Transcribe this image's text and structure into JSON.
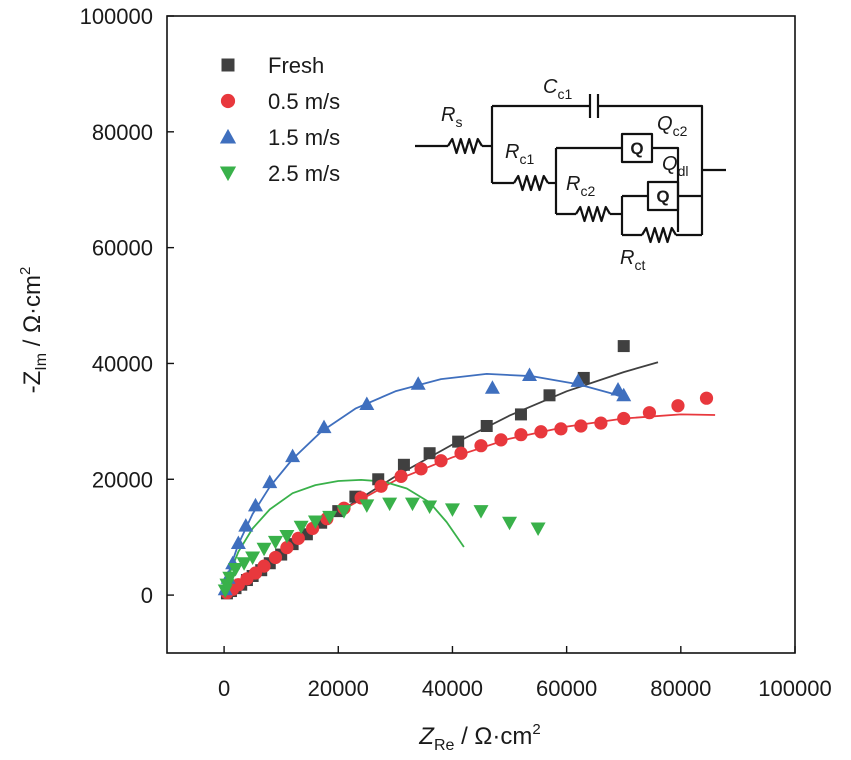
{
  "chart_data": {
    "type": "scatter",
    "xlabel": {
      "main": "Z",
      "sub": "Re",
      "unit": " / Ω·cm",
      "sup": "2"
    },
    "ylabel": {
      "main": "-Z",
      "sub": "Im",
      "unit": " / Ω·cm",
      "sup": "2"
    },
    "xlim": [
      -10000,
      100000
    ],
    "ylim": [
      -10000,
      100000
    ],
    "x_ticks": [
      0,
      20000,
      40000,
      60000,
      80000,
      100000
    ],
    "y_ticks": [
      0,
      20000,
      40000,
      60000,
      80000,
      100000
    ],
    "x_tick_labels": [
      "0",
      "20000",
      "40000",
      "60000",
      "80000",
      "100000"
    ],
    "y_tick_labels": [
      "0",
      "20000",
      "40000",
      "60000",
      "80000",
      "100000"
    ],
    "legend_position": "top-left",
    "grid": false,
    "series": [
      {
        "name": "Fresh",
        "marker": "square",
        "color": "#404040",
        "points": [
          [
            500,
            300
          ],
          [
            1200,
            700
          ],
          [
            2000,
            1200
          ],
          [
            3000,
            1800
          ],
          [
            4000,
            2600
          ],
          [
            5000,
            3300
          ],
          [
            6500,
            4300
          ],
          [
            8000,
            5500
          ],
          [
            10000,
            7000
          ],
          [
            12000,
            8800
          ],
          [
            14500,
            10500
          ],
          [
            17000,
            12500
          ],
          [
            20000,
            14500
          ],
          [
            23000,
            17000
          ],
          [
            27000,
            20000
          ],
          [
            31500,
            22500
          ],
          [
            36000,
            24500
          ],
          [
            41000,
            26500
          ],
          [
            46000,
            29200
          ],
          [
            52000,
            31200
          ],
          [
            57000,
            34500
          ],
          [
            63000,
            37500
          ],
          [
            70000,
            43000
          ]
        ],
        "fit": [
          [
            0,
            0
          ],
          [
            5000,
            3700
          ],
          [
            10000,
            7400
          ],
          [
            20000,
            14300
          ],
          [
            30000,
            20500
          ],
          [
            40000,
            26000
          ],
          [
            50000,
            31000
          ],
          [
            60000,
            35200
          ],
          [
            70000,
            38500
          ],
          [
            76000,
            40200
          ]
        ]
      },
      {
        "name": "0.5 m/s",
        "marker": "circle",
        "color": "#e8383d",
        "points": [
          [
            500,
            400
          ],
          [
            1500,
            1000
          ],
          [
            2500,
            1800
          ],
          [
            4000,
            2800
          ],
          [
            5500,
            3800
          ],
          [
            7000,
            5000
          ],
          [
            9000,
            6500
          ],
          [
            11000,
            8200
          ],
          [
            13000,
            9800
          ],
          [
            15500,
            11500
          ],
          [
            18000,
            13200
          ],
          [
            21000,
            15000
          ],
          [
            24000,
            16800
          ],
          [
            27500,
            18800
          ],
          [
            31000,
            20500
          ],
          [
            34500,
            21800
          ],
          [
            38000,
            23200
          ],
          [
            41500,
            24500
          ],
          [
            45000,
            25800
          ],
          [
            48500,
            26800
          ],
          [
            52000,
            27700
          ],
          [
            55500,
            28200
          ],
          [
            59000,
            28700
          ],
          [
            62500,
            29200
          ],
          [
            66000,
            29700
          ],
          [
            70000,
            30500
          ],
          [
            74500,
            31500
          ],
          [
            79500,
            32700
          ],
          [
            84500,
            34000
          ]
        ],
        "fit": [
          [
            0,
            0
          ],
          [
            5000,
            3800
          ],
          [
            10000,
            7600
          ],
          [
            20000,
            14300
          ],
          [
            30000,
            19800
          ],
          [
            40000,
            23800
          ],
          [
            50000,
            27000
          ],
          [
            60000,
            29100
          ],
          [
            70000,
            30500
          ],
          [
            80000,
            31200
          ],
          [
            86000,
            31100
          ]
        ]
      },
      {
        "name": "1.5 m/s",
        "marker": "triangle-up",
        "color": "#3f6fbe",
        "points": [
          [
            200,
            1000
          ],
          [
            700,
            3000
          ],
          [
            1500,
            5500
          ],
          [
            2500,
            9000
          ],
          [
            3800,
            12000
          ],
          [
            5500,
            15500
          ],
          [
            8000,
            19500
          ],
          [
            12000,
            24000
          ],
          [
            17500,
            29000
          ],
          [
            25000,
            33000
          ],
          [
            34000,
            36500
          ],
          [
            47000,
            35800
          ],
          [
            53500,
            38000
          ],
          [
            62000,
            37000
          ],
          [
            69000,
            35500
          ],
          [
            70000,
            34500
          ]
        ],
        "fit": [
          [
            0,
            0
          ],
          [
            1000,
            4500
          ],
          [
            2500,
            8800
          ],
          [
            5000,
            14000
          ],
          [
            8000,
            18700
          ],
          [
            12000,
            23500
          ],
          [
            17000,
            28200
          ],
          [
            23000,
            32200
          ],
          [
            30000,
            35200
          ],
          [
            38000,
            37300
          ],
          [
            46000,
            38200
          ],
          [
            54000,
            37800
          ],
          [
            62000,
            36400
          ],
          [
            68000,
            34800
          ],
          [
            71000,
            33800
          ]
        ]
      },
      {
        "name": "2.5 m/s",
        "marker": "triangle-down",
        "color": "#39b14a",
        "points": [
          [
            200,
            800
          ],
          [
            500,
            1800
          ],
          [
            1000,
            3000
          ],
          [
            2000,
            4500
          ],
          [
            3500,
            5500
          ],
          [
            5000,
            6500
          ],
          [
            7000,
            8000
          ],
          [
            9000,
            9200
          ],
          [
            11000,
            10200
          ],
          [
            13500,
            11800
          ],
          [
            16000,
            12700
          ],
          [
            18500,
            13500
          ],
          [
            21000,
            14500
          ],
          [
            25000,
            15500
          ],
          [
            29000,
            15800
          ],
          [
            33000,
            15800
          ],
          [
            36000,
            15300
          ],
          [
            40000,
            14800
          ],
          [
            45000,
            14500
          ],
          [
            50000,
            12500
          ],
          [
            55000,
            11500
          ]
        ],
        "fit": [
          [
            0,
            0
          ],
          [
            1000,
            3800
          ],
          [
            2500,
            7500
          ],
          [
            5000,
            11500
          ],
          [
            8000,
            14800
          ],
          [
            12000,
            17600
          ],
          [
            16000,
            19000
          ],
          [
            20000,
            19700
          ],
          [
            24000,
            19900
          ],
          [
            28000,
            19600
          ],
          [
            32000,
            18400
          ],
          [
            36000,
            16000
          ],
          [
            39000,
            12600
          ],
          [
            42000,
            8300
          ]
        ]
      }
    ],
    "inset_circuit": {
      "labels": [
        {
          "main": "R",
          "sub": "s"
        },
        {
          "main": "C",
          "sub": "c1"
        },
        {
          "main": "R",
          "sub": "c1"
        },
        {
          "main": "Q",
          "sub": "c2"
        },
        {
          "main": "Q",
          "sub": "dl"
        },
        {
          "main": "R",
          "sub": "c2"
        },
        {
          "main": "R",
          "sub": "ct"
        }
      ],
      "cpe_glyph": "Q"
    }
  }
}
